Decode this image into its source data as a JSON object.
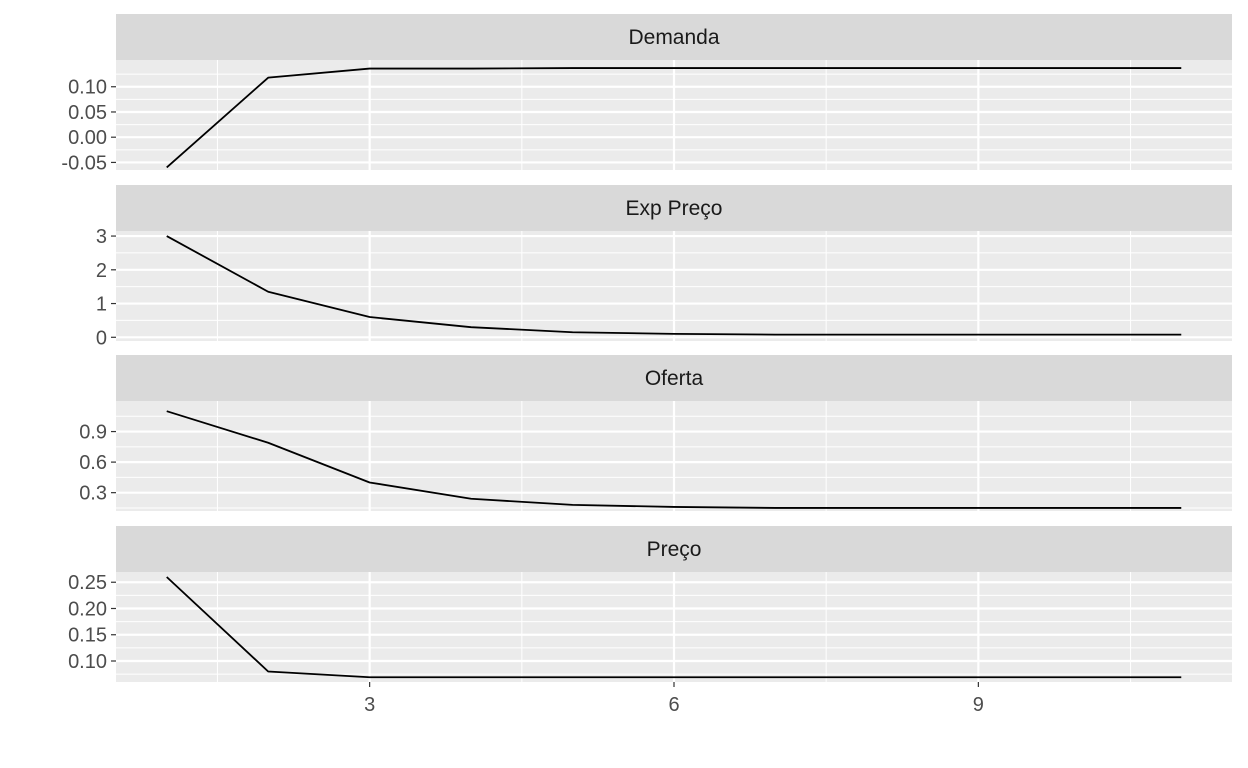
{
  "chart_data": {
    "type": "line",
    "facet_layout": "vertical",
    "x": [
      1,
      2,
      3,
      4,
      5,
      6,
      7,
      8,
      9,
      10,
      11
    ],
    "xlim": [
      0.5,
      11.5
    ],
    "x_ticks": [
      3,
      6,
      9
    ],
    "x_tick_labels": [
      "3",
      "6",
      "9"
    ],
    "line_color": "#000000",
    "panel_background": "#ebebeb",
    "strip_background": "#d9d9d9",
    "grid": true,
    "legend": "none",
    "facets": [
      {
        "strip": "Demanda",
        "ylim": [
          -0.065,
          0.153
        ],
        "y_ticks": [
          -0.05,
          0.0,
          0.05,
          0.1
        ],
        "y_tick_labels": [
          "-0.05",
          "0.00",
          "0.05",
          "0.10"
        ],
        "values": [
          -0.06,
          0.118,
          0.136,
          0.136,
          0.137,
          0.137,
          0.137,
          0.137,
          0.137,
          0.137,
          0.137
        ]
      },
      {
        "strip": "Exp Preço",
        "ylim": [
          -0.11,
          3.15
        ],
        "y_ticks": [
          0,
          1,
          2,
          3
        ],
        "y_tick_labels": [
          "0",
          "1",
          "2",
          "3"
        ],
        "values": [
          3.0,
          1.35,
          0.6,
          0.3,
          0.15,
          0.1,
          0.08,
          0.08,
          0.08,
          0.08,
          0.08
        ]
      },
      {
        "strip": "Oferta",
        "ylim": [
          0.12,
          1.2
        ],
        "y_ticks": [
          0.3,
          0.6,
          0.9
        ],
        "y_tick_labels": [
          "0.3",
          "0.6",
          "0.9"
        ],
        "values": [
          1.1,
          0.79,
          0.4,
          0.24,
          0.18,
          0.16,
          0.15,
          0.15,
          0.15,
          0.15,
          0.15
        ]
      },
      {
        "strip": "Preço",
        "ylim": [
          0.06,
          0.2695
        ],
        "y_ticks": [
          0.1,
          0.15,
          0.2,
          0.25
        ],
        "y_tick_labels": [
          "0.10",
          "0.15",
          "0.20",
          "0.25"
        ],
        "values": [
          0.26,
          0.08,
          0.069,
          0.069,
          0.069,
          0.069,
          0.069,
          0.069,
          0.069,
          0.069,
          0.069
        ]
      }
    ]
  }
}
